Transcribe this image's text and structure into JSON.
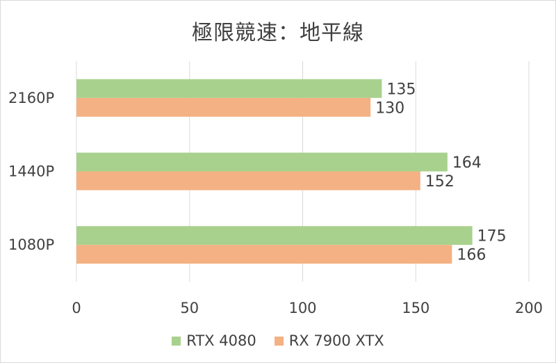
{
  "chart_data": {
    "type": "bar",
    "orientation": "horizontal",
    "title": "極限競速：地平線",
    "categories": [
      "2160P",
      "1440P",
      "1080P"
    ],
    "series": [
      {
        "name": "RTX 4080",
        "color": "#a9d18e",
        "values": [
          135,
          164,
          175
        ]
      },
      {
        "name": "RX 7900 XTX",
        "color": "#f4b183",
        "values": [
          130,
          152,
          166
        ]
      }
    ],
    "xlim": [
      0,
      200
    ],
    "xticks": [
      0,
      50,
      100,
      150,
      200
    ],
    "grid": true,
    "legend_position": "bottom"
  }
}
